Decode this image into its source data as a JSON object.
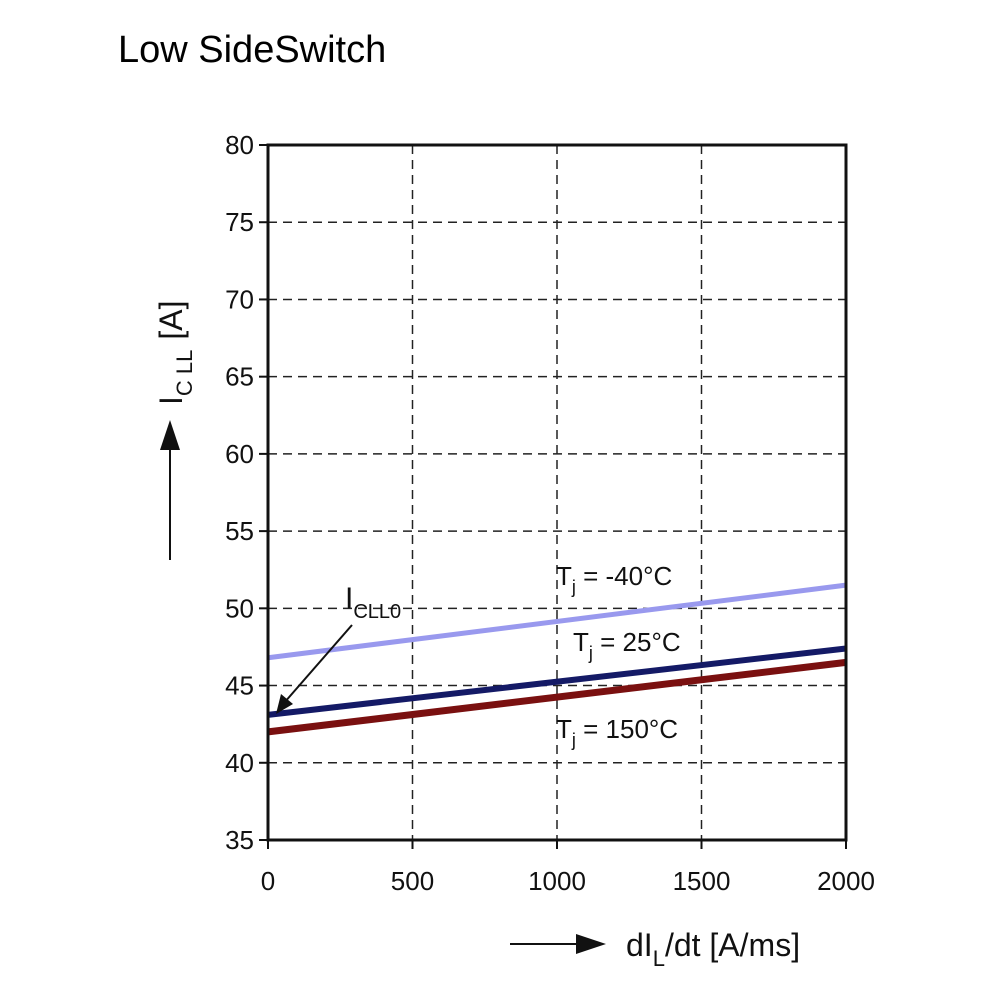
{
  "chart_data": {
    "type": "line",
    "title": "Low SideSwitch",
    "xlabel": {
      "main": "dI",
      "sub": "L",
      "rest": "/dt [A/ms]"
    },
    "ylabel": {
      "main": "I",
      "sub": "C LL",
      "rest": "[A]"
    },
    "xlim": [
      0,
      2000
    ],
    "ylim": [
      35,
      80
    ],
    "x_ticks": [
      0,
      500,
      1000,
      1500,
      2000
    ],
    "y_ticks": [
      35,
      40,
      45,
      50,
      55,
      60,
      65,
      70,
      75,
      80
    ],
    "grid": true,
    "series": [
      {
        "name": "Tj = -40°C",
        "label_main": "T",
        "label_sub": "j",
        "label_rest": " = -40°C",
        "color": "#9999ee",
        "x": [
          0,
          2000
        ],
        "y": [
          46.8,
          51.5
        ]
      },
      {
        "name": "Tj = 25°C",
        "label_main": "T",
        "label_sub": "j",
        "label_rest": " = 25°C",
        "color": "#141a66",
        "x": [
          0,
          2000
        ],
        "y": [
          43.1,
          47.4
        ]
      },
      {
        "name": "Tj = 150°C",
        "label_main": "T",
        "label_sub": "j",
        "label_rest": " = 150°C",
        "color": "#7a1010",
        "x": [
          0,
          2000
        ],
        "y": [
          42.0,
          46.5
        ]
      }
    ],
    "annotation": {
      "main": "I",
      "sub": "CLL0",
      "x": 0,
      "y": 43.1
    }
  }
}
